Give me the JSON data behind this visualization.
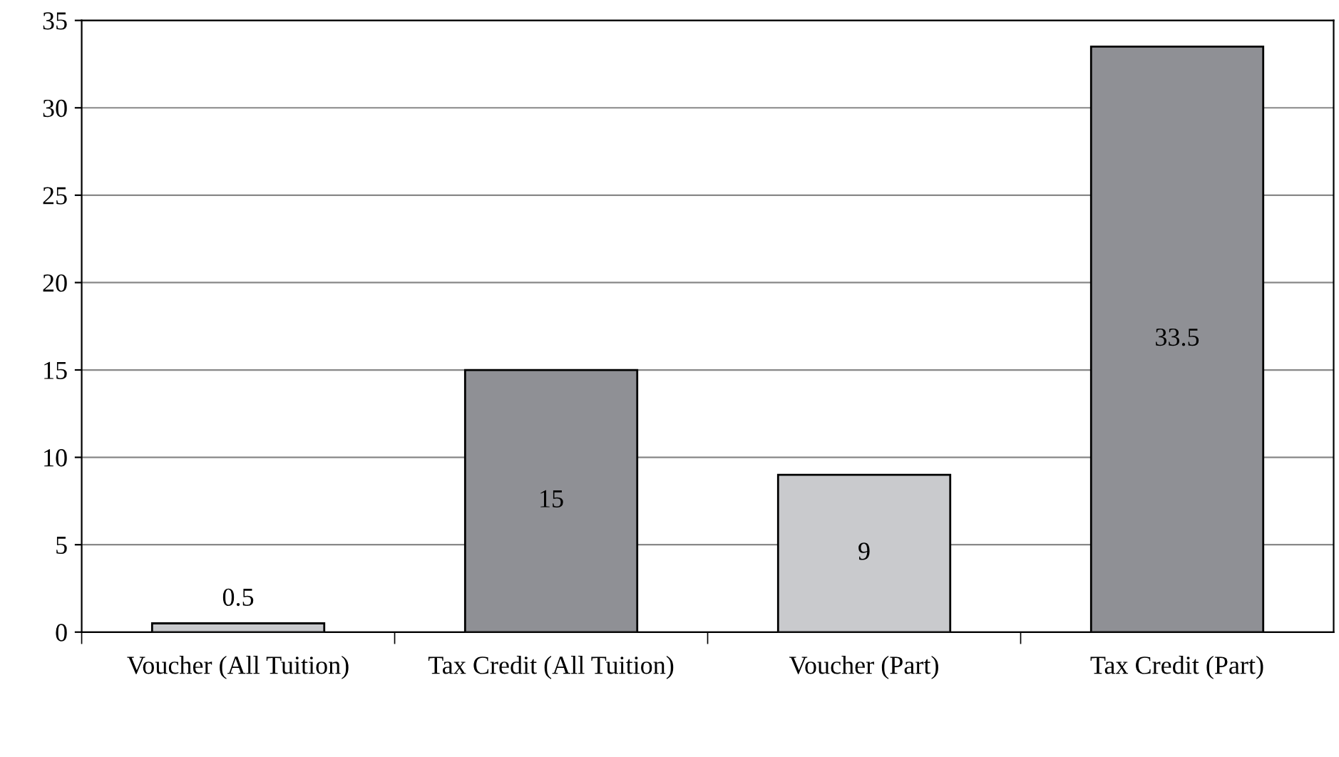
{
  "chart_data": {
    "type": "bar",
    "categories": [
      "Voucher (All Tuition)",
      "Tax Credit (All Tuition)",
      "Voucher (Part)",
      "Tax Credit (Part)"
    ],
    "values": [
      0.5,
      15,
      9,
      33.5
    ],
    "colors": [
      "#c9cacd",
      "#8f9095",
      "#c9cacd",
      "#8f9095"
    ],
    "ylim": [
      0,
      35
    ],
    "yticks": [
      0,
      5,
      10,
      15,
      20,
      25,
      30,
      35
    ],
    "grid": "y",
    "data_labels": true,
    "legend": false
  }
}
